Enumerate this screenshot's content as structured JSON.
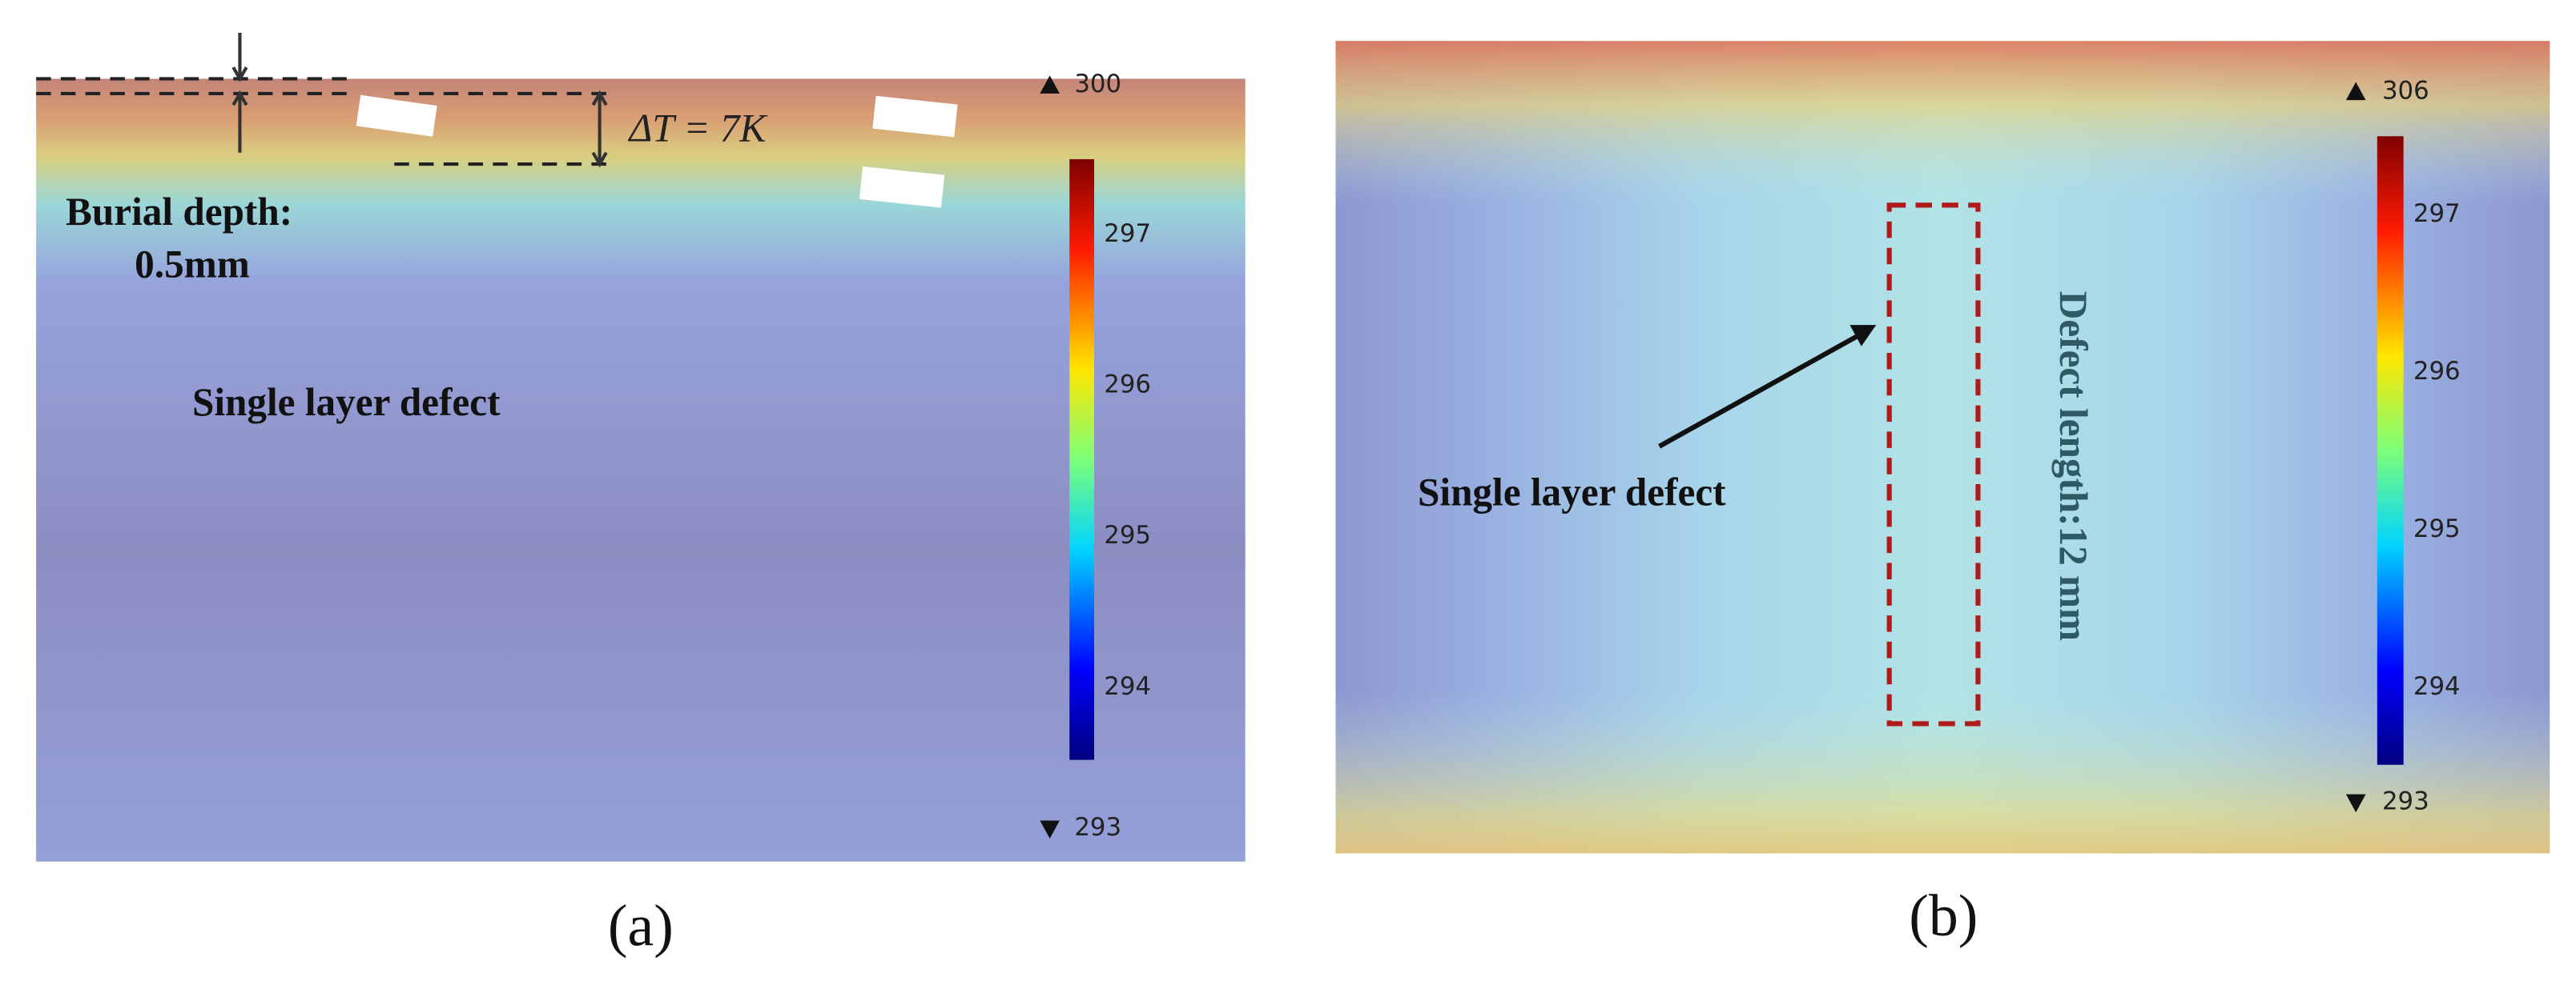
{
  "panel_a": {
    "burial_depth_label": "Burial depth:",
    "burial_depth_value": "0.5mm",
    "delta_t": "ΔT = 7K",
    "defect_label": "Single layer defect",
    "colorbar": {
      "max": "300",
      "ticks": [
        "297",
        "296",
        "295",
        "294"
      ],
      "min": "293"
    },
    "caption": "(a)"
  },
  "panel_b": {
    "defect_label": "Single layer defect",
    "defect_length": "Defect length:12 mm",
    "colorbar": {
      "max": "306",
      "ticks": [
        "297",
        "296",
        "295",
        "294"
      ],
      "min": "293"
    },
    "caption": "(b)"
  }
}
